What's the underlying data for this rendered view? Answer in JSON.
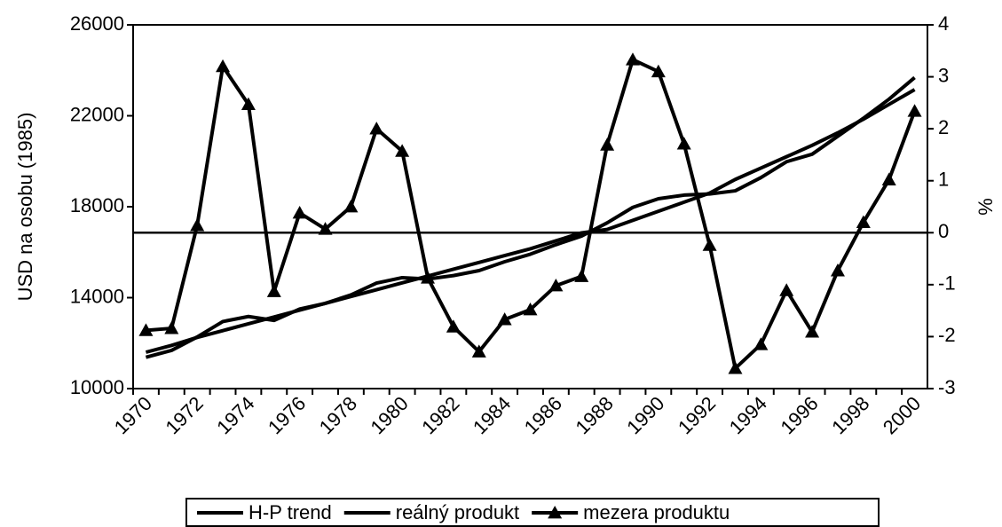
{
  "chart_data": {
    "type": "line",
    "categories": [
      "1970",
      null,
      "1972",
      null,
      "1974",
      null,
      "1976",
      null,
      "1978",
      null,
      "1980",
      null,
      "1982",
      null,
      "1984",
      null,
      "1986",
      null,
      "1988",
      null,
      "1990",
      null,
      "1992",
      null,
      "1994",
      null,
      "1996",
      null,
      "1998",
      null,
      "2000"
    ],
    "series": [
      {
        "name": "H-P trend",
        "color": "#000000",
        "values": [
          11600,
          11900,
          12250,
          12550,
          12850,
          13150,
          13450,
          13750,
          14050,
          14350,
          14650,
          14950,
          15250,
          15550,
          15850,
          16150,
          16500,
          16850,
          17000,
          17400,
          17800,
          18200,
          18600,
          19200,
          19700,
          20200,
          20700,
          21250,
          21850,
          22500,
          23150
        ]
      },
      {
        "name": "reálný produkt",
        "color": "#000000",
        "values": [
          11380,
          11680,
          12270,
          12950,
          13170,
          13000,
          13500,
          13750,
          14120,
          14640,
          14880,
          14820,
          14970,
          15190,
          15580,
          15910,
          16330,
          16710,
          17290,
          17970,
          18350,
          18510,
          18560,
          18700,
          19280,
          19980,
          20310,
          21100,
          21890,
          22730,
          23680
        ]
      },
      {
        "name": "mezera produktu",
        "color": "#000000",
        "axis": "y2",
        "marker": "triangle",
        "values": [
          -1.88,
          -1.84,
          0.14,
          3.2,
          2.47,
          -1.13,
          0.38,
          0.07,
          0.5,
          2.0,
          1.57,
          -0.87,
          -1.81,
          -2.29,
          -1.67,
          -1.48,
          -1.02,
          -0.84,
          1.69,
          3.33,
          3.1,
          1.71,
          -0.24,
          -2.61,
          -2.15,
          -1.11,
          -1.91,
          -0.73,
          0.2,
          1.02,
          2.34
        ]
      }
    ],
    "y_label": "USD na osobu (1985)",
    "y2_label": "%",
    "ylim": [
      10000,
      26000
    ],
    "yticks": [
      10000,
      14000,
      18000,
      22000,
      26000
    ],
    "y2lim": [
      -3,
      4
    ],
    "y2ticks": [
      -3,
      -2,
      -1,
      0,
      1,
      2,
      3,
      4
    ],
    "legend": "bottom"
  }
}
